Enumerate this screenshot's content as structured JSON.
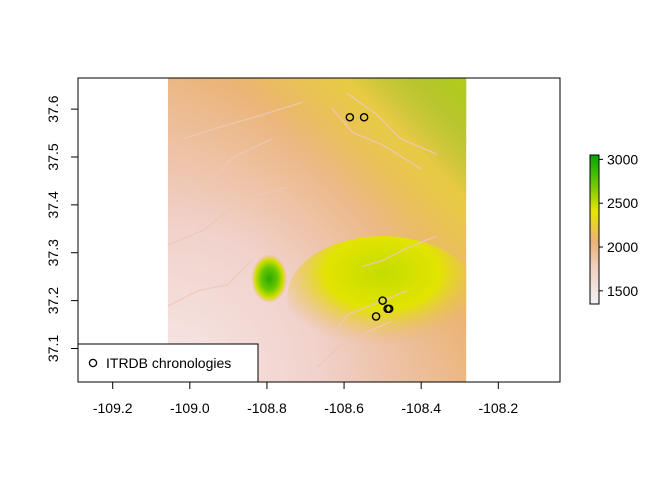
{
  "chart_data": {
    "type": "heatmap",
    "title": "",
    "xlabel": "",
    "ylabel": "",
    "xlim": [
      -109.29,
      -108.04
    ],
    "ylim": [
      37.03,
      37.665
    ],
    "raster_extent": {
      "xmin": -109.057,
      "xmax": -108.283,
      "ymin": 37.03,
      "ymax": 37.665
    },
    "x_ticks": [
      -109.2,
      -109.0,
      -108.8,
      -108.6,
      -108.4,
      -108.2
    ],
    "x_tick_labels": [
      "-109.2",
      "-109.0",
      "-108.8",
      "-108.6",
      "-108.4",
      "-108.2"
    ],
    "y_ticks": [
      37.1,
      37.2,
      37.3,
      37.4,
      37.5,
      37.6
    ],
    "y_tick_labels": [
      "37.1",
      "37.2",
      "37.3",
      "37.4",
      "37.5",
      "37.6"
    ],
    "colorbar": {
      "range": [
        1350,
        3050
      ],
      "ticks": [
        1500,
        2000,
        2500,
        3000
      ],
      "tick_labels": [
        "1500",
        "2000",
        "2500",
        "3000"
      ],
      "colors": [
        "#f2f2f2",
        "#ecb176",
        "#e6e600",
        "#63c600",
        "#00a600"
      ]
    },
    "points": [
      {
        "lon": -108.585,
        "lat": 37.583
      },
      {
        "lon": -108.548,
        "lat": 37.583
      },
      {
        "lon": -108.5,
        "lat": 37.2
      },
      {
        "lon": -108.487,
        "lat": 37.183
      },
      {
        "lon": -108.483,
        "lat": 37.183
      },
      {
        "lon": -108.517,
        "lat": 37.167
      }
    ],
    "legend": {
      "position": "bottom-left",
      "entries": [
        "ITRDB chronologies"
      ]
    }
  }
}
